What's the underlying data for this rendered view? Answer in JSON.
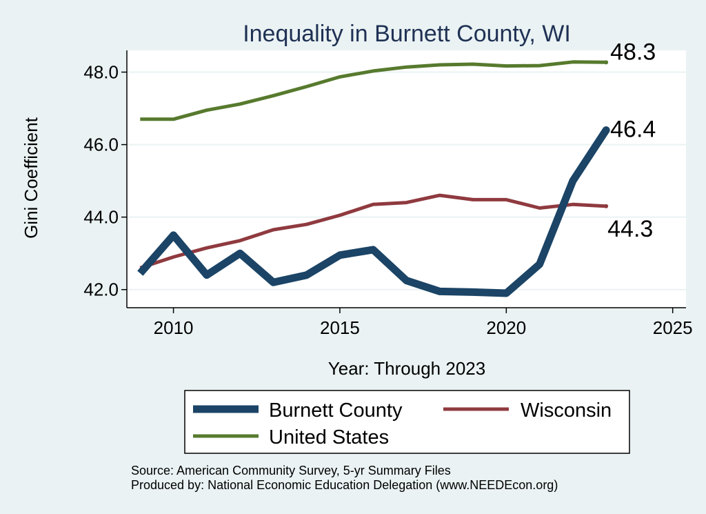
{
  "chart_data": {
    "type": "line",
    "title": "Inequality in Burnett County, WI",
    "xlabel": "Year: Through 2023",
    "ylabel": "Gini Coefficient",
    "xlim": [
      2008.6,
      2025.4
    ],
    "ylim": [
      41.5,
      48.6
    ],
    "xticks": [
      "2010",
      "2015",
      "2020",
      "2025"
    ],
    "yticks": [
      "42.0",
      "44.0",
      "46.0",
      "48.0"
    ],
    "grid": true,
    "legend_position": "bottom",
    "x": [
      2009,
      2010,
      2011,
      2012,
      2013,
      2014,
      2015,
      2016,
      2017,
      2018,
      2019,
      2020,
      2021,
      2022,
      2023
    ],
    "series": [
      {
        "name": "Burnett County",
        "color": "#1b4466",
        "width": 11,
        "values": [
          42.45,
          43.5,
          42.4,
          43.0,
          42.2,
          42.4,
          42.95,
          43.1,
          42.25,
          41.95,
          41.93,
          41.9,
          42.7,
          45.0,
          46.4
        ],
        "end_label": "46.4"
      },
      {
        "name": "Wisconsin",
        "color": "#8f3a3f",
        "width": 5,
        "values": [
          42.6,
          42.9,
          43.15,
          43.35,
          43.65,
          43.8,
          44.05,
          44.35,
          44.4,
          44.6,
          44.48,
          44.48,
          44.25,
          44.35,
          44.3
        ],
        "end_label": "44.3"
      },
      {
        "name": "United States",
        "color": "#577a2e",
        "width": 5,
        "values": [
          46.7,
          46.7,
          46.95,
          47.12,
          47.35,
          47.6,
          47.87,
          48.03,
          48.14,
          48.2,
          48.22,
          48.17,
          48.18,
          48.28,
          48.27
        ],
        "end_label": "48.3"
      }
    ],
    "legend": [
      "Burnett County",
      "Wisconsin",
      "United States"
    ]
  },
  "source_lines": [
    "Source: American Community Survey, 5-yr Summary Files",
    "Produced by: National Economic Education Delegation (www.NEEDEcon.org)"
  ]
}
